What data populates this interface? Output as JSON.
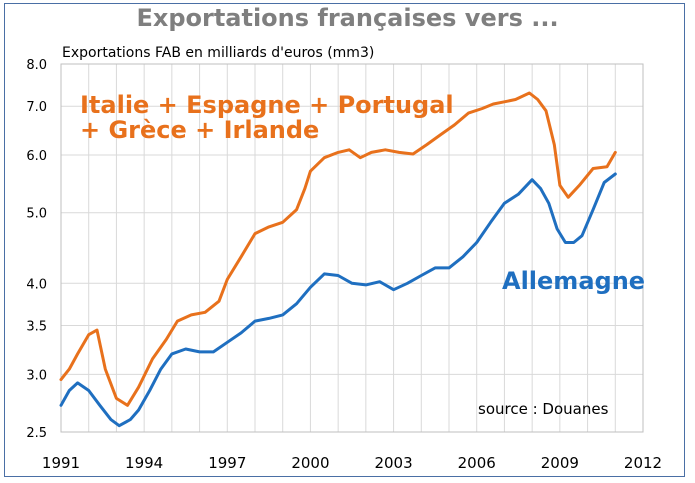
{
  "chart_data": {
    "type": "line",
    "title": "Exportations françaises vers ...",
    "ylabel": "Exportations FAB en milliards d'euros (mm3)",
    "yscale": "log",
    "ylim": [
      2.5,
      8.0
    ],
    "xlim": [
      1991,
      2012
    ],
    "yticks": [
      "2.5",
      "3.0",
      "3.5",
      "4.0",
      "5.0",
      "6.0",
      "7.0",
      "8.0"
    ],
    "xticks": [
      "1991",
      "1994",
      "1997",
      "2000",
      "2003",
      "2006",
      "2009",
      "2012"
    ],
    "grid": true,
    "source": "source : Douanes",
    "series": [
      {
        "name": "Italie + Espagne + Portugal + Grèce + Irlande",
        "label_lines": [
          "Italie + Espagne + Portugal",
          "+ Grèce + Irlande"
        ],
        "color": "#e8711c",
        "x": [
          1991.0,
          1991.3,
          1991.6,
          1992.0,
          1992.3,
          1992.6,
          1993.0,
          1993.4,
          1993.8,
          1994.3,
          1994.8,
          1995.2,
          1995.7,
          1996.2,
          1996.7,
          1997.0,
          1997.5,
          1998.0,
          1998.5,
          1999.0,
          1999.5,
          1999.8,
          2000.0,
          2000.5,
          2001.0,
          2001.4,
          2001.8,
          2002.2,
          2002.7,
          2003.2,
          2003.7,
          2004.2,
          2004.7,
          2005.2,
          2005.7,
          2006.2,
          2006.6,
          2007.0,
          2007.4,
          2007.9,
          2008.2,
          2008.5,
          2008.8,
          2009.0,
          2009.3,
          2009.7,
          2010.2,
          2010.7,
          2011.0
        ],
        "values": [
          2.95,
          3.05,
          3.2,
          3.4,
          3.45,
          3.05,
          2.78,
          2.72,
          2.88,
          3.15,
          3.35,
          3.55,
          3.62,
          3.65,
          3.78,
          4.05,
          4.35,
          4.68,
          4.78,
          4.85,
          5.05,
          5.4,
          5.7,
          5.95,
          6.05,
          6.1,
          5.95,
          6.05,
          6.1,
          6.05,
          6.02,
          6.2,
          6.4,
          6.6,
          6.85,
          6.95,
          7.05,
          7.1,
          7.15,
          7.3,
          7.15,
          6.9,
          6.2,
          5.45,
          5.25,
          5.45,
          5.75,
          5.78,
          6.05
        ]
      },
      {
        "name": "Allemagne",
        "color": "#1f6fc0",
        "x": [
          1991.0,
          1991.3,
          1991.6,
          1992.0,
          1992.4,
          1992.8,
          1993.1,
          1993.5,
          1993.8,
          1994.2,
          1994.6,
          1995.0,
          1995.5,
          1996.0,
          1996.5,
          1997.0,
          1997.5,
          1998.0,
          1998.5,
          1999.0,
          1999.5,
          2000.0,
          2000.5,
          2001.0,
          2001.5,
          2002.0,
          2002.5,
          2003.0,
          2003.5,
          2004.0,
          2004.5,
          2005.0,
          2005.5,
          2006.0,
          2006.5,
          2007.0,
          2007.5,
          2008.0,
          2008.3,
          2008.6,
          2008.9,
          2009.2,
          2009.5,
          2009.8,
          2010.2,
          2010.6,
          2011.0
        ],
        "values": [
          2.72,
          2.85,
          2.92,
          2.85,
          2.72,
          2.6,
          2.55,
          2.6,
          2.68,
          2.85,
          3.05,
          3.2,
          3.25,
          3.22,
          3.22,
          3.32,
          3.42,
          3.55,
          3.58,
          3.62,
          3.75,
          3.95,
          4.12,
          4.1,
          4.0,
          3.98,
          4.02,
          3.92,
          4.0,
          4.1,
          4.2,
          4.2,
          4.35,
          4.55,
          4.85,
          5.15,
          5.3,
          5.55,
          5.4,
          5.15,
          4.75,
          4.55,
          4.55,
          4.65,
          5.05,
          5.5,
          5.65
        ]
      }
    ],
    "annotations": [
      {
        "text": "Allemagne",
        "color": "#1f6fc0"
      }
    ]
  }
}
